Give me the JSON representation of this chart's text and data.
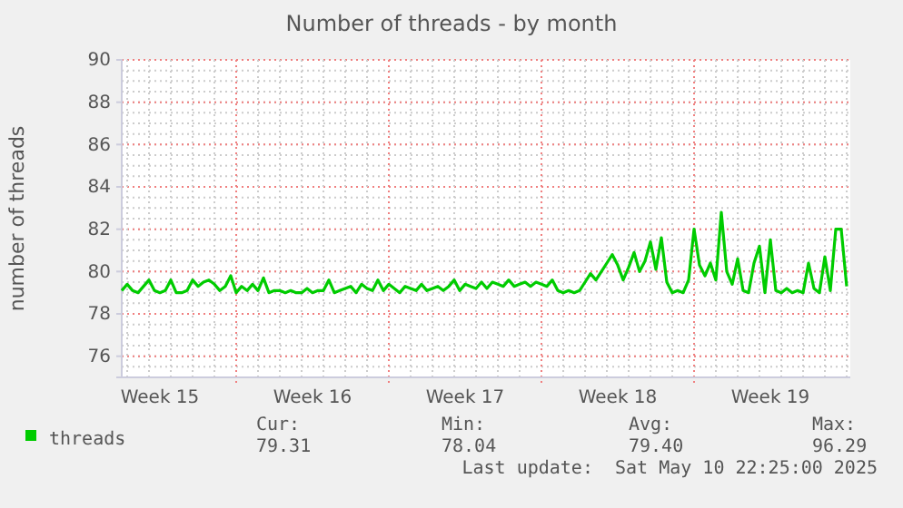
{
  "chart_data": {
    "type": "line",
    "title": "Number of threads - by month",
    "ylabel": "number of threads",
    "ylim": [
      75,
      90
    ],
    "yticks": [
      76,
      78,
      80,
      82,
      84,
      86,
      88,
      90
    ],
    "grid": true,
    "legend": "bottom",
    "marker": "none",
    "line_style": "solid",
    "categories": [
      null,
      null,
      null,
      null,
      null,
      null,
      null,
      "Week 15",
      null,
      null,
      null,
      null,
      null,
      null,
      null,
      null,
      null,
      null,
      null,
      null,
      null,
      null,
      null,
      null,
      null,
      null,
      null,
      null,
      null,
      null,
      null,
      null,
      null,
      null,
      null,
      "Week 16",
      null,
      null,
      null,
      null,
      null,
      null,
      null,
      null,
      null,
      null,
      null,
      null,
      null,
      null,
      null,
      null,
      null,
      null,
      null,
      null,
      null,
      null,
      null,
      null,
      null,
      null,
      null,
      "Week 17",
      null,
      null,
      null,
      null,
      null,
      null,
      null,
      null,
      null,
      null,
      null,
      null,
      null,
      null,
      null,
      null,
      null,
      null,
      null,
      null,
      null,
      null,
      null,
      null,
      null,
      null,
      null,
      "Week 18",
      null,
      null,
      null,
      null,
      null,
      null,
      null,
      null,
      null,
      null,
      null,
      null,
      null,
      null,
      null,
      null,
      null,
      null,
      null,
      null,
      null,
      null,
      null,
      null,
      null,
      null,
      null,
      "Week 19",
      null,
      null,
      null,
      null,
      null,
      null,
      null,
      null,
      null,
      null,
      null,
      null,
      null,
      null
    ],
    "series": [
      {
        "name": "threads",
        "color": "#00cc00",
        "values": [
          79.1,
          79.4,
          79.1,
          79.0,
          79.3,
          79.6,
          79.1,
          79.0,
          79.1,
          79.6,
          79.0,
          79.0,
          79.1,
          79.6,
          79.3,
          79.5,
          79.6,
          79.4,
          79.1,
          79.3,
          79.8,
          79.0,
          79.3,
          79.1,
          79.4,
          79.1,
          79.7,
          79.0,
          79.1,
          79.1,
          79.0,
          79.1,
          79.0,
          79.0,
          79.2,
          79.0,
          79.1,
          79.1,
          79.6,
          79.0,
          79.1,
          79.2,
          79.3,
          79.0,
          79.4,
          79.2,
          79.1,
          79.6,
          79.1,
          79.4,
          79.2,
          79.0,
          79.3,
          79.2,
          79.1,
          79.4,
          79.1,
          79.2,
          79.3,
          79.1,
          79.3,
          79.6,
          79.1,
          79.4,
          79.3,
          79.2,
          79.5,
          79.2,
          79.5,
          79.4,
          79.3,
          79.6,
          79.3,
          79.4,
          79.5,
          79.3,
          79.5,
          79.4,
          79.3,
          79.6,
          79.1,
          79.0,
          79.1,
          79.0,
          79.1,
          79.5,
          79.9,
          79.6,
          80.0,
          80.4,
          80.8,
          80.3,
          79.6,
          80.2,
          80.9,
          80.0,
          80.5,
          81.4,
          80.1,
          81.6,
          79.5,
          79.0,
          79.1,
          79.0,
          79.6,
          82.0,
          80.3,
          79.8,
          80.4,
          79.6,
          82.8,
          80.0,
          79.4,
          80.6,
          79.1,
          79.0,
          80.4,
          81.2,
          79.0,
          81.5,
          79.1,
          79.0,
          79.2,
          79.0,
          79.1,
          79.0,
          80.4,
          79.2,
          79.0,
          80.7,
          79.1,
          82.0,
          82.0,
          79.3
        ]
      }
    ],
    "annotations": [
      "Cur:",
      "79.31",
      "Min:",
      "78.04",
      "Avg:",
      "79.40",
      "Max:",
      "96.29",
      "Last update:  Sat May 10 22:25:00 2025"
    ]
  }
}
